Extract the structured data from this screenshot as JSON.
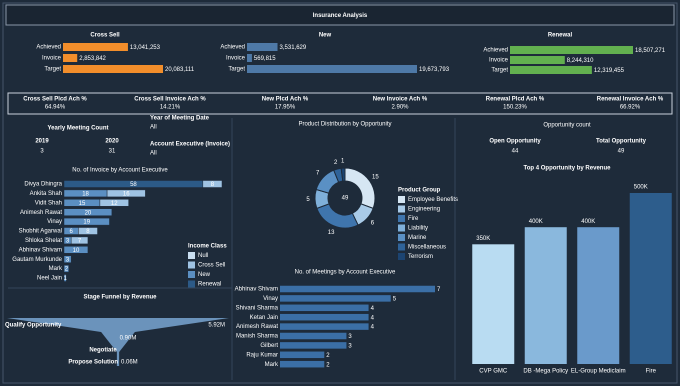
{
  "title": "Insurance Analysis",
  "kpis": [
    {
      "label": "Cross Sell Plcd Ach %",
      "value": "64.94%"
    },
    {
      "label": "Cross Sell Invoice Ach %",
      "value": "14.21%"
    },
    {
      "label": "New Plcd Ach %",
      "value": "17.95%"
    },
    {
      "label": "New Invoice Ach %",
      "value": "2.90%"
    },
    {
      "label": "Renewal Plcd Ach %",
      "value": "150.23%"
    },
    {
      "label": "Renewal Invoice Ach %",
      "value": "66.92%"
    }
  ],
  "filters": [
    {
      "label": "Year of Meeting Date",
      "value": "All"
    },
    {
      "label": "Account Executive (Invoice)",
      "value": "All"
    }
  ],
  "yearly_meeting_count": {
    "title": "Yearly Meeting Count",
    "years": [
      "2019",
      "2020"
    ],
    "values": [
      3,
      31
    ]
  },
  "opportunity_count": {
    "title": "Opportunity count",
    "labels": [
      "Open Opportunity",
      "Total Opportunity"
    ],
    "values": [
      44,
      49
    ]
  },
  "chart_data": [
    {
      "type": "bar",
      "horizontal": true,
      "title": "Cross Sell",
      "categories": [
        "Achieved",
        "Invoice",
        "Target"
      ],
      "values": [
        13041253,
        2853842,
        20083111
      ],
      "value_labels": [
        "13,041,253",
        "2,853,842",
        "20,083,111"
      ],
      "color": "#f28e2b"
    },
    {
      "type": "bar",
      "horizontal": true,
      "title": "New",
      "categories": [
        "Achieved",
        "Invoice",
        "Target"
      ],
      "values": [
        3531629,
        569815,
        19673793
      ],
      "value_labels": [
        "3,531,629",
        "569,815",
        "19,673,793"
      ],
      "color": "#4e79a7"
    },
    {
      "type": "bar",
      "horizontal": true,
      "title": "Renewal",
      "categories": [
        "Achieved",
        "Invoice",
        "Target"
      ],
      "values": [
        18507271,
        8244310,
        12319455
      ],
      "value_labels": [
        "18,507,271",
        "8,244,310",
        "12,319,455"
      ],
      "color": "#62b04f"
    },
    {
      "type": "bar",
      "horizontal": true,
      "stacked": true,
      "title": "No. of Invoice by Account Executive",
      "categories": [
        "Divya Dhingra",
        "Ankita Shah",
        "Vidit Shah",
        "Animesh Rawat",
        "Vinay",
        "Shobhit Agarwal",
        "Shloka Shelat",
        "Abhinav Shivam",
        "Gautam Murkunde",
        "Mark",
        "Neel Jain"
      ],
      "legend_title": "Income Class",
      "series": [
        {
          "name": "Null",
          "color": "#c9def0",
          "values": [
            null,
            null,
            null,
            null,
            null,
            null,
            null,
            null,
            null,
            null,
            null
          ]
        },
        {
          "name": "Cross Sell",
          "color": "#9fc3e3",
          "values": [
            8,
            16,
            12,
            null,
            null,
            8,
            7,
            null,
            null,
            null,
            null
          ]
        },
        {
          "name": "New",
          "color": "#5b8fc2",
          "values": [
            null,
            18,
            15,
            20,
            19,
            6,
            3,
            10,
            3,
            2,
            1
          ]
        },
        {
          "name": "Renewal",
          "color": "#2c5a87",
          "values": [
            58,
            null,
            null,
            null,
            null,
            null,
            null,
            null,
            null,
            null,
            null
          ]
        }
      ]
    },
    {
      "type": "pie",
      "donut": true,
      "title": "Product Distribution by Opportunity",
      "total": 49,
      "legend_title": "Product Group",
      "categories": [
        "Employee Benefits",
        "Engineering",
        "Fire",
        "Liability",
        "Marine",
        "Miscellaneous",
        "Terrorism"
      ],
      "values": [
        15,
        6,
        13,
        5,
        7,
        2,
        1
      ],
      "colors": [
        "#d6e6f3",
        "#a9cbe8",
        "#3f75ad",
        "#7fb0da",
        "#5a90c4",
        "#2f6399",
        "#1c4471"
      ]
    },
    {
      "type": "bar",
      "title": "Top 4 Opportunity by Revenue",
      "categories": [
        "CVP GMC",
        "DB -Mega Policy",
        "EL-Group Mediclaim",
        "Fire"
      ],
      "values": [
        350000,
        400000,
        400000,
        500000
      ],
      "value_labels": [
        "350K",
        "400K",
        "400K",
        "500K"
      ],
      "colors": [
        "#b9dcf2",
        "#8ab8dd",
        "#6a9acb",
        "#2d5d8c"
      ]
    },
    {
      "type": "bar",
      "horizontal": true,
      "title": "No. of Meetings by Account Executive",
      "categories": [
        "Abhinav Shivam",
        "Vinay",
        "Shivani Sharma",
        "Ketan Jain",
        "Animesh Rawat",
        "Manish Sharma",
        "Gilbert",
        "Raju Kumar",
        "Mark"
      ],
      "values": [
        7,
        5,
        4,
        4,
        4,
        3,
        3,
        2,
        2
      ],
      "color": "#3b6fa6"
    },
    {
      "type": "funnel",
      "title": "Stage Funnel by Revenue",
      "categories": [
        "Qualify Opportunity",
        "Negotiate",
        "Propose Solution"
      ],
      "values": [
        5920000,
        900000,
        60000
      ],
      "value_labels": [
        "5.92M",
        "0.90M",
        "0.06M"
      ],
      "color": "#6b93bb"
    }
  ]
}
